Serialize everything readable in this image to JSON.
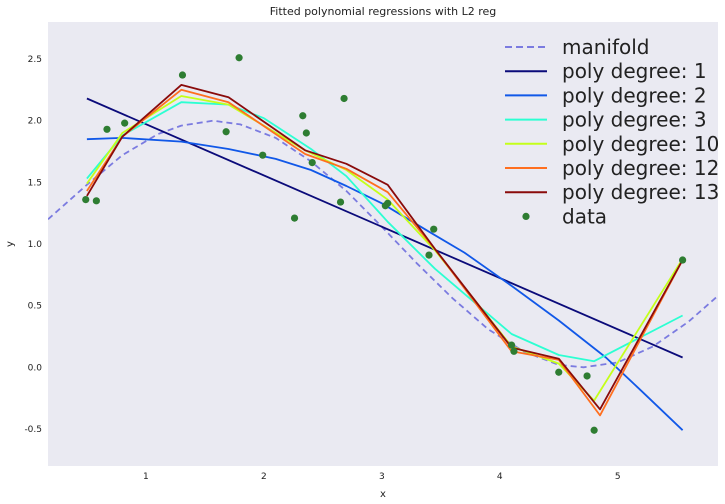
{
  "chart_data": {
    "type": "line",
    "title": "Fitted polynomial regressions with L2 reg",
    "xlabel": "x",
    "ylabel": "y",
    "xlim": [
      0.17,
      5.85
    ],
    "ylim": [
      -0.8,
      2.8
    ],
    "xticks": [
      1,
      2,
      3,
      4,
      5
    ],
    "xtick_labels": [
      "1",
      "2",
      "3",
      "4",
      "5"
    ],
    "yticks": [
      -0.5,
      0.0,
      0.5,
      1.0,
      1.5,
      2.0,
      2.5
    ],
    "ytick_labels": [
      "-0.5",
      "0.0",
      "0.5",
      "1.0",
      "1.5",
      "2.0",
      "2.5"
    ],
    "grid": false,
    "legend_position": "top-right",
    "background": "#eaeaf2",
    "series": [
      {
        "name": "manifold",
        "style": "dashed",
        "color": "#7b7be0",
        "x": [
          0.17,
          0.5,
          0.8,
          1.1,
          1.3,
          1.57,
          1.8,
          2.1,
          2.4,
          2.7,
          3.0,
          3.3,
          3.6,
          3.9,
          4.2,
          4.5,
          4.71,
          5.0,
          5.3,
          5.6,
          5.85
        ],
        "y": [
          1.2,
          1.48,
          1.72,
          1.89,
          1.96,
          2.0,
          1.97,
          1.86,
          1.67,
          1.43,
          1.14,
          0.84,
          0.56,
          0.31,
          0.13,
          0.02,
          0.0,
          0.04,
          0.17,
          0.37,
          0.58
        ]
      },
      {
        "name": "poly degree: 1",
        "style": "solid",
        "color": "#0b0b7a",
        "x": [
          0.5,
          5.55
        ],
        "y": [
          2.18,
          0.08
        ]
      },
      {
        "name": "poly degree: 2",
        "style": "solid",
        "color": "#1158e8",
        "x": [
          0.5,
          0.8,
          1.3,
          1.7,
          2.1,
          2.4,
          2.7,
          3.0,
          3.4,
          3.7,
          4.1,
          4.5,
          4.9,
          5.2,
          5.55
        ],
        "y": [
          1.85,
          1.86,
          1.83,
          1.77,
          1.69,
          1.6,
          1.47,
          1.33,
          1.1,
          0.93,
          0.66,
          0.38,
          0.08,
          -0.19,
          -0.51
        ]
      },
      {
        "name": "poly degree: 3",
        "style": "solid",
        "color": "#2cffd2",
        "x": [
          0.5,
          0.8,
          1.3,
          1.7,
          2.0,
          2.4,
          2.7,
          3.05,
          3.45,
          4.1,
          4.5,
          4.8,
          5.55
        ],
        "y": [
          1.53,
          1.88,
          2.15,
          2.13,
          2.02,
          1.77,
          1.55,
          1.18,
          0.8,
          0.27,
          0.1,
          0.05,
          0.42
        ]
      },
      {
        "name": "poly degree: 10",
        "style": "solid",
        "color": "#c4ff1a",
        "x": [
          0.5,
          0.8,
          1.3,
          1.7,
          2.35,
          2.7,
          3.05,
          3.45,
          4.1,
          4.5,
          4.8,
          5.55
        ],
        "y": [
          1.49,
          1.9,
          2.2,
          2.13,
          1.76,
          1.6,
          1.36,
          0.95,
          0.17,
          0.03,
          -0.27,
          0.88
        ]
      },
      {
        "name": "poly degree: 12",
        "style": "solid",
        "color": "#ff6f1f",
        "x": [
          0.5,
          0.8,
          1.3,
          1.7,
          2.35,
          2.7,
          3.05,
          3.45,
          4.1,
          4.5,
          4.85,
          5.55
        ],
        "y": [
          1.43,
          1.87,
          2.25,
          2.15,
          1.73,
          1.61,
          1.42,
          0.96,
          0.13,
          0.06,
          -0.39,
          0.87
        ]
      },
      {
        "name": "poly degree: 13",
        "style": "solid",
        "color": "#8a0b0b",
        "x": [
          0.5,
          0.8,
          1.3,
          1.7,
          2.35,
          2.7,
          3.05,
          3.45,
          4.1,
          4.5,
          4.85,
          5.55
        ],
        "y": [
          1.39,
          1.87,
          2.29,
          2.19,
          1.76,
          1.65,
          1.48,
          0.96,
          0.16,
          0.07,
          -0.34,
          0.87
        ]
      }
    ],
    "scatter": {
      "name": "data",
      "color": "#2e7d32",
      "points": [
        {
          "x": 0.49,
          "y": 1.36
        },
        {
          "x": 0.58,
          "y": 1.35
        },
        {
          "x": 0.67,
          "y": 1.93
        },
        {
          "x": 0.82,
          "y": 1.98
        },
        {
          "x": 1.31,
          "y": 2.37
        },
        {
          "x": 1.68,
          "y": 1.91
        },
        {
          "x": 1.79,
          "y": 2.51
        },
        {
          "x": 1.99,
          "y": 1.72
        },
        {
          "x": 2.26,
          "y": 1.21
        },
        {
          "x": 2.33,
          "y": 2.04
        },
        {
          "x": 2.36,
          "y": 1.9
        },
        {
          "x": 2.41,
          "y": 1.66
        },
        {
          "x": 2.65,
          "y": 1.34
        },
        {
          "x": 2.68,
          "y": 2.18
        },
        {
          "x": 3.03,
          "y": 1.31
        },
        {
          "x": 3.05,
          "y": 1.33
        },
        {
          "x": 3.4,
          "y": 0.91
        },
        {
          "x": 3.44,
          "y": 1.12
        },
        {
          "x": 4.1,
          "y": 0.18
        },
        {
          "x": 4.12,
          "y": 0.13
        },
        {
          "x": 4.5,
          "y": -0.04
        },
        {
          "x": 4.74,
          "y": -0.07
        },
        {
          "x": 4.8,
          "y": -0.51
        },
        {
          "x": 5.55,
          "y": 0.87
        }
      ]
    }
  }
}
